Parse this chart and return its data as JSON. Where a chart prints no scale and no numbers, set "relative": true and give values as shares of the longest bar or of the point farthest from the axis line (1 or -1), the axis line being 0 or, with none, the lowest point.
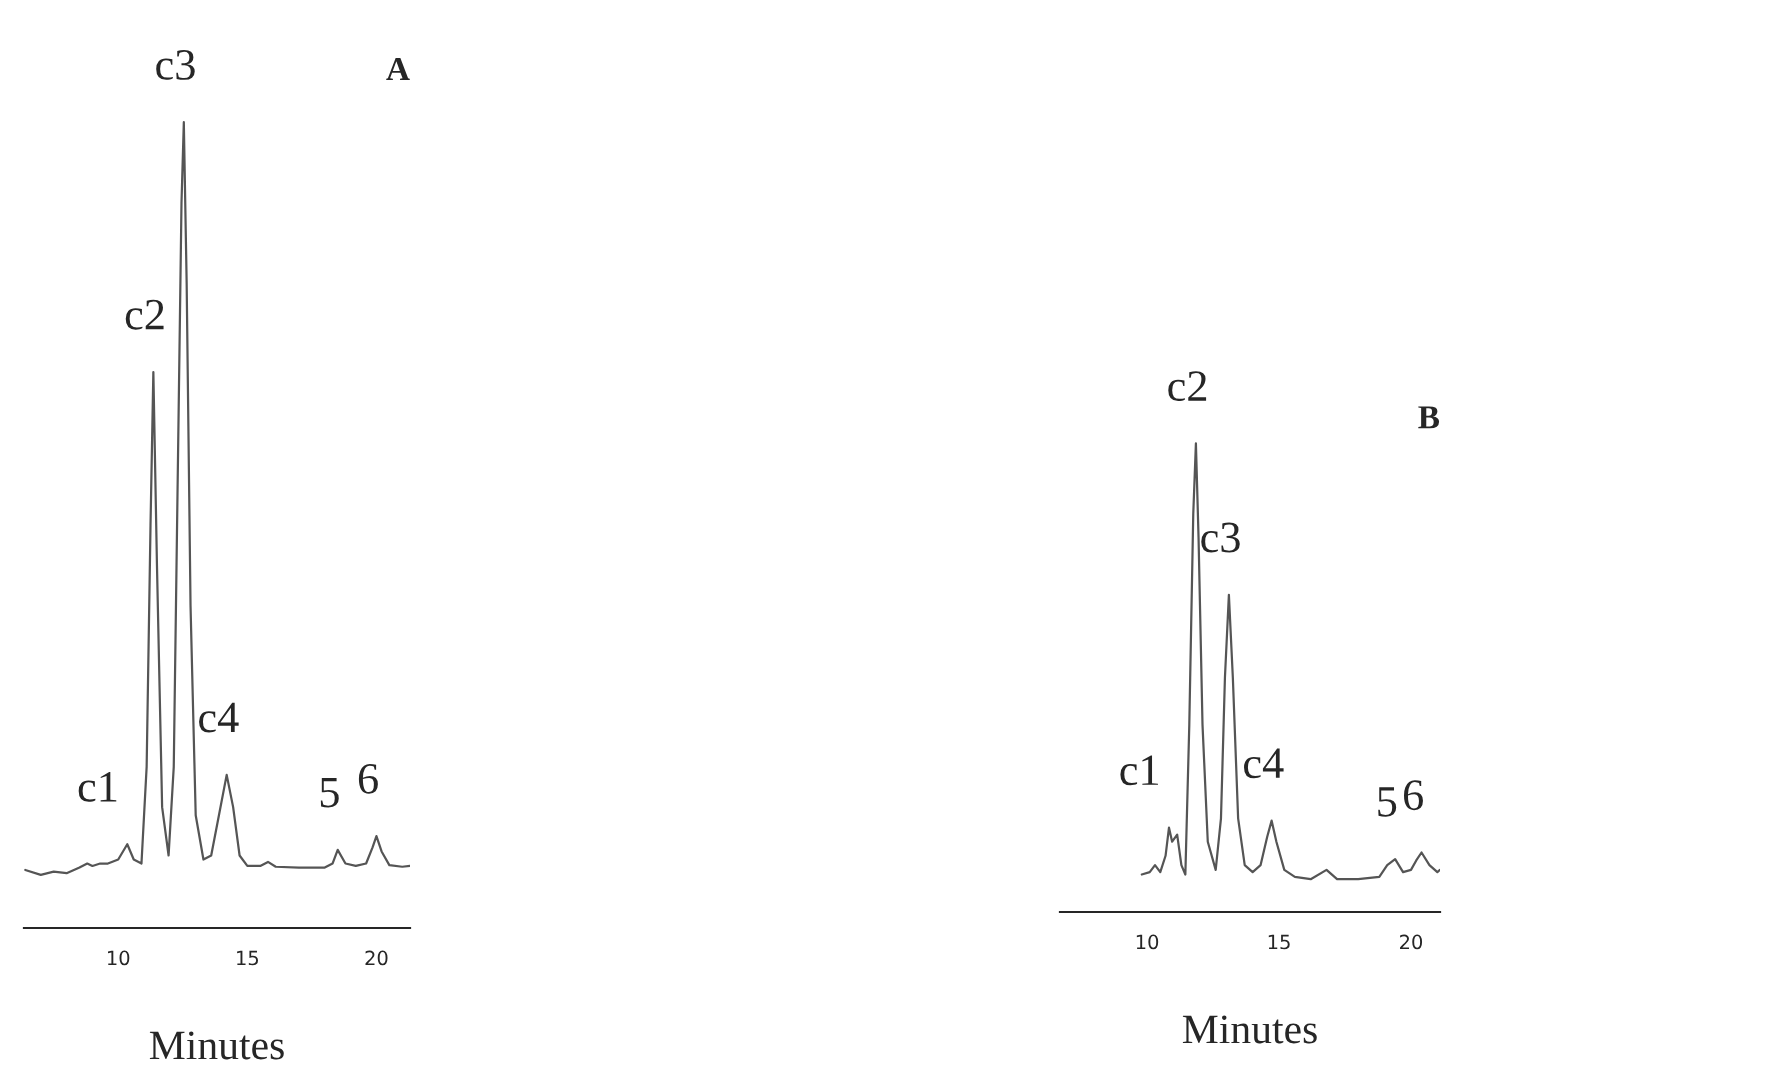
{
  "chart_data": [
    {
      "type": "line",
      "title": "A",
      "xlabel": "Minutes",
      "relative": true,
      "xlim": [
        6.35,
        21.3
      ],
      "xticks": [
        10,
        15,
        20
      ],
      "grid": false,
      "legend": false,
      "series": [
        {
          "color": "#555555",
          "x": [
            6.4,
            7.0,
            7.5,
            8.0,
            8.5,
            8.8,
            9.0,
            9.3,
            9.6,
            10.0,
            10.35,
            10.6,
            10.9,
            11.1,
            11.25,
            11.36,
            11.5,
            11.7,
            11.95,
            12.15,
            12.3,
            12.45,
            12.54,
            12.65,
            12.8,
            13.0,
            13.3,
            13.6,
            13.9,
            14.2,
            14.45,
            14.7,
            15.0,
            15.5,
            15.8,
            16.1,
            17.0,
            18.0,
            18.3,
            18.5,
            18.8,
            19.2,
            19.6,
            19.85,
            20.0,
            20.2,
            20.5,
            21.0,
            21.3
          ],
          "values": [
            0.072,
            0.066,
            0.07,
            0.068,
            0.075,
            0.08,
            0.077,
            0.08,
            0.08,
            0.085,
            0.104,
            0.085,
            0.08,
            0.2,
            0.5,
            0.69,
            0.45,
            0.15,
            0.09,
            0.2,
            0.55,
            0.9,
            1.0,
            0.8,
            0.4,
            0.14,
            0.085,
            0.09,
            0.14,
            0.19,
            0.15,
            0.09,
            0.077,
            0.077,
            0.082,
            0.076,
            0.075,
            0.075,
            0.08,
            0.097,
            0.08,
            0.077,
            0.08,
            0.1,
            0.114,
            0.095,
            0.078,
            0.076,
            0.077
          ]
        }
      ],
      "annotations": [
        {
          "text": "c1",
          "x": 10.35,
          "y": 0.104
        },
        {
          "text": "c2",
          "x": 11.36,
          "y": 0.69
        },
        {
          "text": "c3",
          "x": 12.54,
          "y": 1.0
        },
        {
          "text": "c4",
          "x": 14.2,
          "y": 0.19
        },
        {
          "text": "5",
          "x": 18.5,
          "y": 0.097
        },
        {
          "text": "6",
          "x": 20.0,
          "y": 0.114
        }
      ]
    },
    {
      "type": "line",
      "title": "B",
      "xlabel": "Minutes",
      "relative": true,
      "xlim": [
        6.7,
        21.1
      ],
      "xticks": [
        10,
        15,
        20
      ],
      "grid": false,
      "legend": false,
      "series": [
        {
          "color": "#555555",
          "x": [
            9.8,
            10.1,
            10.3,
            10.5,
            10.7,
            10.83,
            10.95,
            11.14,
            11.3,
            11.45,
            11.6,
            11.75,
            11.85,
            11.95,
            12.1,
            12.3,
            12.6,
            12.8,
            12.95,
            13.1,
            13.25,
            13.45,
            13.7,
            14.0,
            14.3,
            14.55,
            14.72,
            14.9,
            15.2,
            15.6,
            16.2,
            16.8,
            17.2,
            18.0,
            18.8,
            19.1,
            19.4,
            19.7,
            20.0,
            20.2,
            20.4,
            20.7,
            21.0,
            21.1
          ],
          "values": [
            0.08,
            0.085,
            0.1,
            0.085,
            0.12,
            0.18,
            0.15,
            0.165,
            0.1,
            0.08,
            0.4,
            0.85,
            1.0,
            0.8,
            0.4,
            0.15,
            0.09,
            0.2,
            0.5,
            0.677,
            0.5,
            0.2,
            0.1,
            0.085,
            0.1,
            0.16,
            0.195,
            0.15,
            0.09,
            0.075,
            0.07,
            0.09,
            0.07,
            0.07,
            0.075,
            0.1,
            0.113,
            0.085,
            0.09,
            0.11,
            0.127,
            0.1,
            0.085,
            0.09
          ]
        }
      ],
      "annotations": [
        {
          "text": "c1",
          "x": 10.83,
          "y": 0.18
        },
        {
          "text": "c2",
          "x": 11.85,
          "y": 1.0
        },
        {
          "text": "c3",
          "x": 13.1,
          "y": 0.677
        },
        {
          "text": "c4",
          "x": 14.72,
          "y": 0.195
        },
        {
          "text": "5",
          "x": 19.4,
          "y": 0.113
        },
        {
          "text": "6",
          "x": 20.4,
          "y": 0.127
        }
      ]
    }
  ]
}
